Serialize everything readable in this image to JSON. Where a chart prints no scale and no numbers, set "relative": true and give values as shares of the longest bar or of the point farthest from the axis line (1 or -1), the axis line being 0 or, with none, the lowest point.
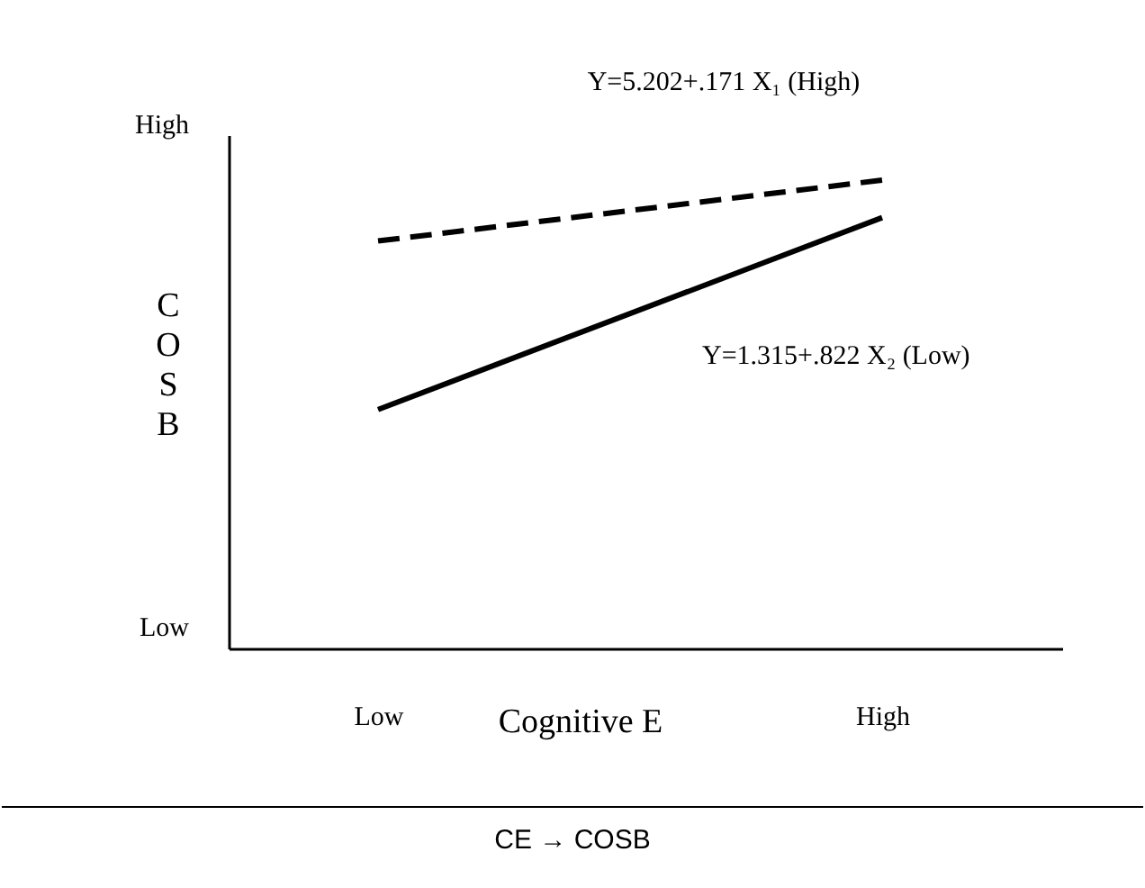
{
  "chart_data": {
    "type": "line",
    "xlabel": "Cognitive E",
    "ylabel": "COSB",
    "categories": [
      "Low",
      "High"
    ],
    "series": [
      {
        "color": "#000000",
        "line_style": "dashed",
        "values": [
          0.87,
          1
        ]
      },
      {
        "color": "#000000",
        "line_style": "solid",
        "values": [
          0.51,
          0.92
        ]
      }
    ],
    "relative": true,
    "marker": "none",
    "annotations": [
      "Y=5.202+.171 X₁ (High)",
      "Y=1.315+.822 X₂ (Low)",
      "CE → COSB",
      "High",
      "Low"
    ]
  }
}
